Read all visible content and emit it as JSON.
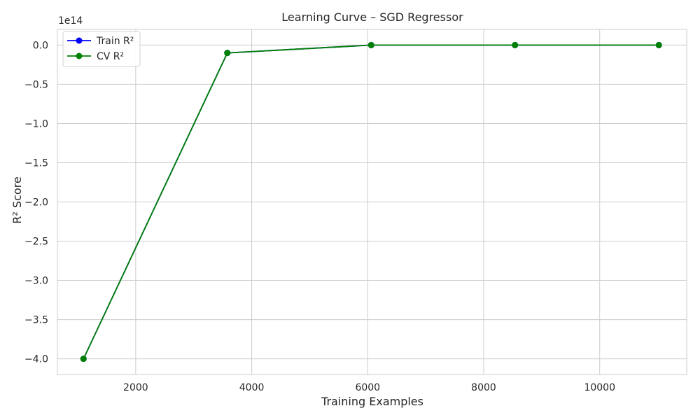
{
  "chart_data": {
    "type": "line",
    "title": "Learning Curve – SGD Regressor",
    "xlabel": "Training Examples",
    "ylabel": "R² Score",
    "y_offset_label": "1e14",
    "xlim": [
      650,
      11500
    ],
    "ylim": [
      -4.2,
      0.2
    ],
    "x_ticks": [
      2000,
      4000,
      6000,
      8000,
      10000
    ],
    "x_tick_labels": [
      "2000",
      "4000",
      "6000",
      "8000",
      "10000"
    ],
    "y_ticks": [
      0.0,
      -0.5,
      -1.0,
      -1.5,
      -2.0,
      -2.5,
      -3.0,
      -3.5,
      -4.0
    ],
    "y_tick_labels": [
      "0.0",
      "−0.5",
      "−1.0",
      "−1.5",
      "−2.0",
      "−2.5",
      "−3.0",
      "−3.5",
      "−4.0"
    ],
    "grid": true,
    "legend_position": "top-left",
    "x": [
      1100,
      3580,
      6060,
      8540,
      11020
    ],
    "series": [
      {
        "name": "Train R²",
        "color": "#0000ff",
        "values": [
          -4.0,
          -0.1,
          0.0,
          0.0,
          0.0
        ]
      },
      {
        "name": "CV R²",
        "color": "#008000",
        "values": [
          -4.0,
          -0.1,
          0.0,
          0.0,
          0.0
        ]
      }
    ]
  }
}
